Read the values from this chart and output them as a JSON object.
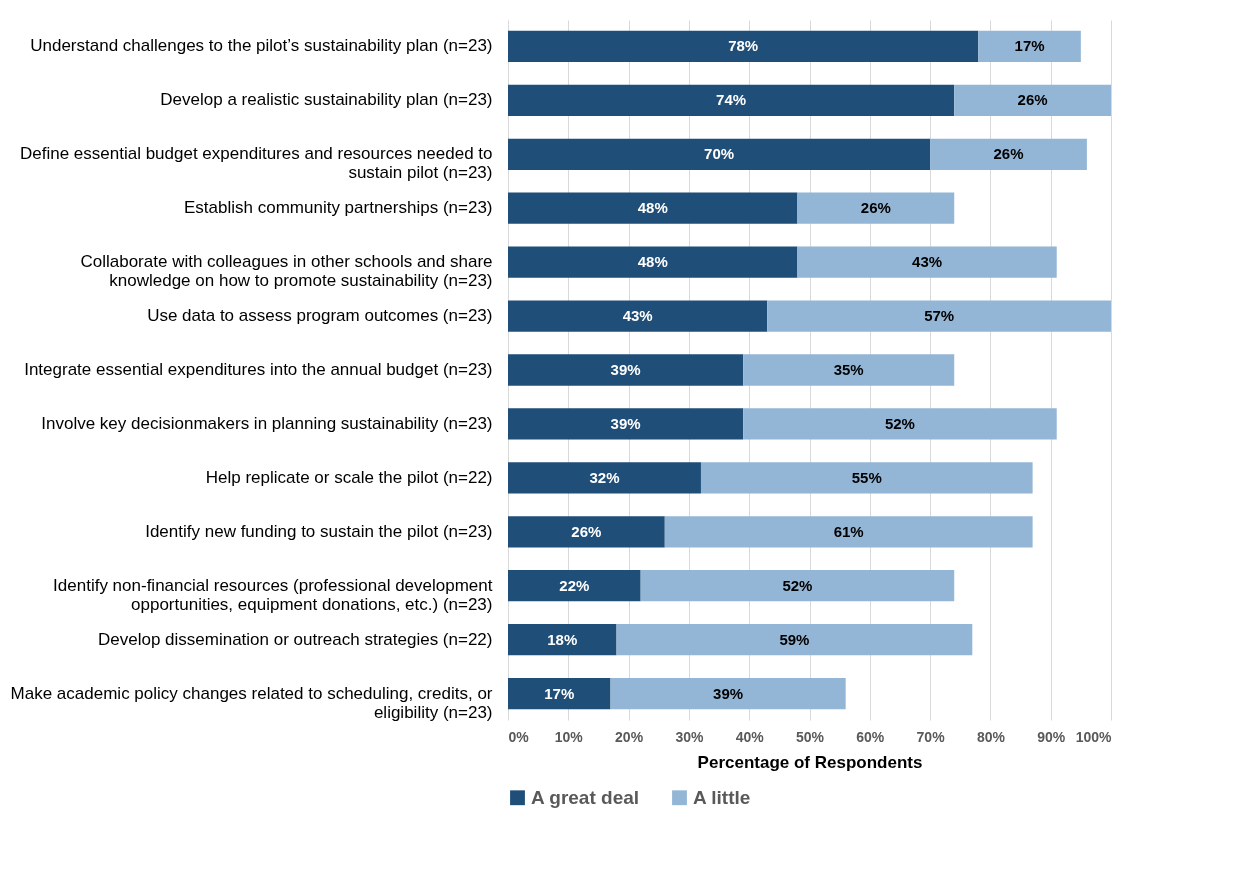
{
  "chart_data": {
    "type": "bar",
    "orientation": "horizontal",
    "stacked": true,
    "xlabel": "Percentage of Respondents",
    "categories": [
      "Understand challenges to the pilot’s sustainability plan (n=23)",
      "Develop a realistic sustainability plan (n=23)",
      "Define essential budget expenditures and resources needed to\nsustain pilot (n=23)",
      "Establish community partnerships  (n=23)",
      "Collaborate with colleagues in other schools and share\nknowledge on how to promote sustainability (n=23)",
      "Use data to assess program outcomes (n=23)",
      "Integrate essential expenditures into the annual budget (n=23)",
      "Involve key decisionmakers in planning sustainability (n=23)",
      "Help replicate or scale the pilot (n=22)",
      "Identify new funding to sustain the pilot (n=23)",
      "Identify non-financial resources (professional development\nopportunities, equipment donations, etc.) (n=23)",
      "Develop dissemination or outreach strategies (n=22)",
      "Make academic policy changes related to scheduling, credits, or\neligibility (n=23)"
    ],
    "series": [
      {
        "name": "A great deal",
        "color": "#1f4e79",
        "values": [
          78,
          74,
          70,
          48,
          48,
          43,
          39,
          39,
          32,
          26,
          22,
          18,
          17
        ],
        "value_labels": [
          "78%",
          "74%",
          "70%",
          "48%",
          "48%",
          "43%",
          "39%",
          "39%",
          "32%",
          "26%",
          "22%",
          "18%",
          "17%"
        ]
      },
      {
        "name": "A little",
        "color": "#94b6d6",
        "values": [
          17,
          26,
          26,
          26,
          43,
          57,
          35,
          52,
          55,
          61,
          52,
          59,
          39
        ],
        "value_labels": [
          "17%",
          "26%",
          "26%",
          "26%",
          "43%",
          "57%",
          "35%",
          "52%",
          "55%",
          "61%",
          "52%",
          "59%",
          "39%"
        ]
      }
    ],
    "xlim": [
      0,
      100
    ],
    "xticks": [
      {
        "value": 0,
        "label": "0%"
      },
      {
        "value": 10,
        "label": "10%"
      },
      {
        "value": 20,
        "label": "20%"
      },
      {
        "value": 30,
        "label": "30%"
      },
      {
        "value": 40,
        "label": "40%"
      },
      {
        "value": 50,
        "label": "50%"
      },
      {
        "value": 60,
        "label": "60%"
      },
      {
        "value": 70,
        "label": "70%"
      },
      {
        "value": 80,
        "label": "80%"
      },
      {
        "value": 90,
        "label": "90%"
      },
      {
        "value": 100,
        "label": "100%"
      }
    ],
    "grid": "x",
    "legend": "bottom"
  }
}
